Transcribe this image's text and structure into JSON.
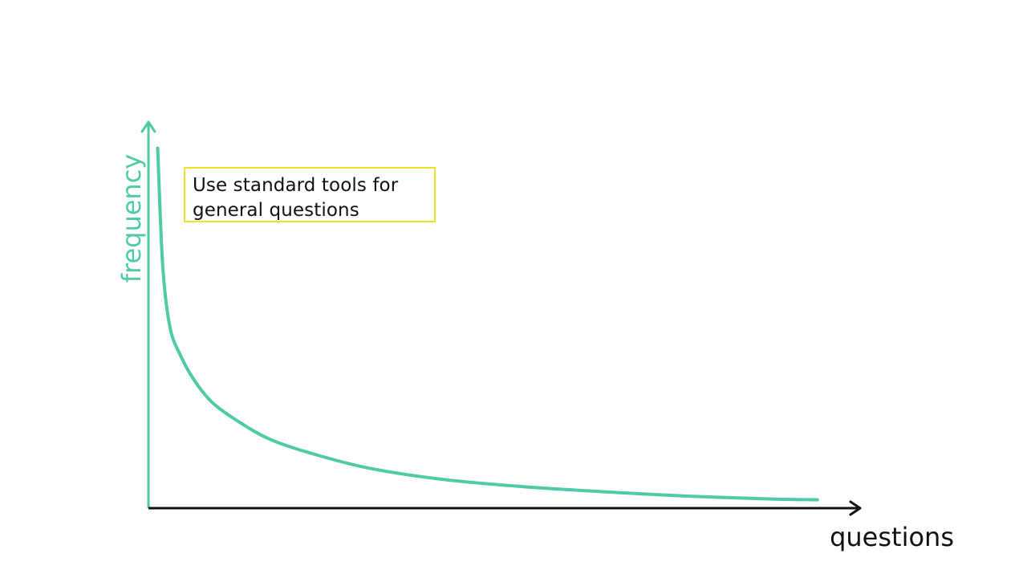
{
  "colors": {
    "curve": "#4ecba6",
    "y_axis": "#4ecba6",
    "x_axis": "#111111",
    "annotation_border": "#f2e224",
    "text": "#111111"
  },
  "annotation": {
    "text": "Use standard tools for\ngeneral questions"
  },
  "chart_data": {
    "type": "line",
    "title": "",
    "xlabel": "questions",
    "ylabel": "frequency",
    "grid": false,
    "legend": "none",
    "xlim": [
      0,
      1
    ],
    "ylim": [
      0,
      1
    ],
    "series": [
      {
        "x": [
          0.013,
          0.02,
          0.03,
          0.045,
          0.065,
          0.09,
          0.125,
          0.17,
          0.23,
          0.31,
          0.41,
          0.52,
          0.64,
          0.76,
          0.88,
          0.94
        ],
        "values": [
          0.99,
          0.67,
          0.5,
          0.42,
          0.35,
          0.29,
          0.24,
          0.19,
          0.15,
          0.11,
          0.08,
          0.06,
          0.045,
          0.033,
          0.025,
          0.023
        ]
      }
    ]
  }
}
